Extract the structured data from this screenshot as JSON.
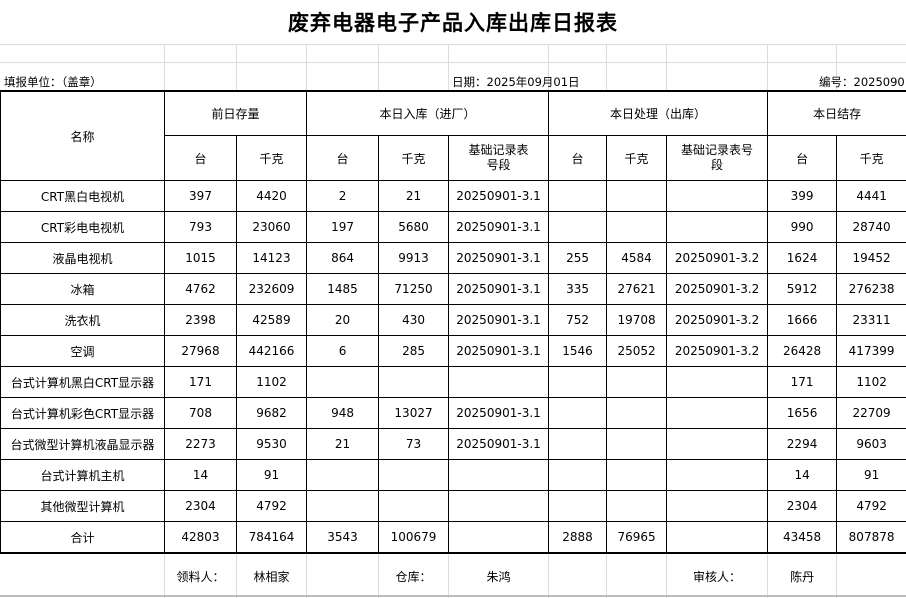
{
  "title": "废弃电器电子产品入库出库日报表",
  "info": {
    "unit": "填报单位：（盖章）",
    "date": "日期：2025年09月01日",
    "number": "编号：2025090"
  },
  "headers": {
    "name": "名称",
    "prev_stock": "前日存量",
    "today_in": "本日入库（进厂）",
    "today_out": "本日处理（出库）",
    "today_balance": "本日结存",
    "unit_count": "台",
    "unit_kg": "千克",
    "record_no": "基础记录表号段"
  },
  "rows": [
    {
      "name": "CRT黑白电视机",
      "prev_qty": "397",
      "prev_kg": "4420",
      "in_qty": "2",
      "in_kg": "21",
      "in_rec": "20250901-3.1",
      "out_qty": "",
      "out_kg": "",
      "out_rec": "",
      "bal_qty": "399",
      "bal_kg": "4441"
    },
    {
      "name": "CRT彩电电视机",
      "prev_qty": "793",
      "prev_kg": "23060",
      "in_qty": "197",
      "in_kg": "5680",
      "in_rec": "20250901-3.1",
      "out_qty": "",
      "out_kg": "",
      "out_rec": "",
      "bal_qty": "990",
      "bal_kg": "28740"
    },
    {
      "name": "液晶电视机",
      "prev_qty": "1015",
      "prev_kg": "14123",
      "in_qty": "864",
      "in_kg": "9913",
      "in_rec": "20250901-3.1",
      "out_qty": "255",
      "out_kg": "4584",
      "out_rec": "20250901-3.2",
      "bal_qty": "1624",
      "bal_kg": "19452"
    },
    {
      "name": "冰箱",
      "prev_qty": "4762",
      "prev_kg": "232609",
      "in_qty": "1485",
      "in_kg": "71250",
      "in_rec": "20250901-3.1",
      "out_qty": "335",
      "out_kg": "27621",
      "out_rec": "20250901-3.2",
      "bal_qty": "5912",
      "bal_kg": "276238"
    },
    {
      "name": "洗衣机",
      "prev_qty": "2398",
      "prev_kg": "42589",
      "in_qty": "20",
      "in_kg": "430",
      "in_rec": "20250901-3.1",
      "out_qty": "752",
      "out_kg": "19708",
      "out_rec": "20250901-3.2",
      "bal_qty": "1666",
      "bal_kg": "23311"
    },
    {
      "name": "空调",
      "prev_qty": "27968",
      "prev_kg": "442166",
      "in_qty": "6",
      "in_kg": "285",
      "in_rec": "20250901-3.1",
      "out_qty": "1546",
      "out_kg": "25052",
      "out_rec": "20250901-3.2",
      "bal_qty": "26428",
      "bal_kg": "417399"
    },
    {
      "name": "台式计算机黑白CRT显示器",
      "prev_qty": "171",
      "prev_kg": "1102",
      "in_qty": "",
      "in_kg": "",
      "in_rec": "",
      "out_qty": "",
      "out_kg": "",
      "out_rec": "",
      "bal_qty": "171",
      "bal_kg": "1102"
    },
    {
      "name": "台式计算机彩色CRT显示器",
      "prev_qty": "708",
      "prev_kg": "9682",
      "in_qty": "948",
      "in_kg": "13027",
      "in_rec": "20250901-3.1",
      "out_qty": "",
      "out_kg": "",
      "out_rec": "",
      "bal_qty": "1656",
      "bal_kg": "22709"
    },
    {
      "name": "台式微型计算机液晶显示器",
      "prev_qty": "2273",
      "prev_kg": "9530",
      "in_qty": "21",
      "in_kg": "73",
      "in_rec": "20250901-3.1",
      "out_qty": "",
      "out_kg": "",
      "out_rec": "",
      "bal_qty": "2294",
      "bal_kg": "9603"
    },
    {
      "name": "台式计算机主机",
      "prev_qty": "14",
      "prev_kg": "91",
      "in_qty": "",
      "in_kg": "",
      "in_rec": "",
      "out_qty": "",
      "out_kg": "",
      "out_rec": "",
      "bal_qty": "14",
      "bal_kg": "91"
    },
    {
      "name": "其他微型计算机",
      "prev_qty": "2304",
      "prev_kg": "4792",
      "in_qty": "",
      "in_kg": "",
      "in_rec": "",
      "out_qty": "",
      "out_kg": "",
      "out_rec": "",
      "bal_qty": "2304",
      "bal_kg": "4792"
    }
  ],
  "total": {
    "name": "合计",
    "prev_qty": "42803",
    "prev_kg": "784164",
    "in_qty": "3543",
    "in_kg": "100679",
    "in_rec": "",
    "out_qty": "2888",
    "out_kg": "76965",
    "out_rec": "",
    "bal_qty": "43458",
    "bal_kg": "807878"
  },
  "footer": {
    "receiver_label": "领料人：",
    "receiver": "林相家",
    "warehouse_label": "仓库：",
    "warehouse": "朱鸿",
    "reviewer_label": "审核人：",
    "reviewer": "陈丹"
  }
}
